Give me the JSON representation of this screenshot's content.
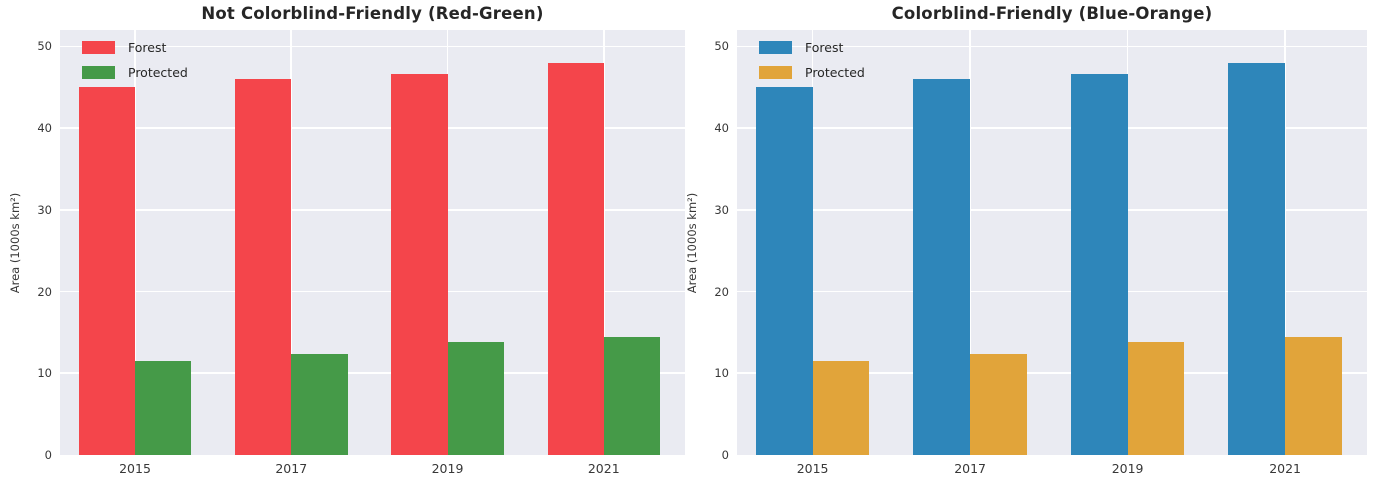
{
  "figure": {
    "background": "#ffffff",
    "axes_background": "#eaebf2",
    "grid_color": "#ffffff",
    "title_color": "#262626",
    "tick_color": "#383838"
  },
  "chart_data": [
    {
      "type": "bar",
      "title": "Not Colorblind-Friendly (Red-Green)",
      "categories": [
        "2015",
        "2017",
        "2019",
        "2021"
      ],
      "series": [
        {
          "name": "Forest",
          "color": "#f4454b",
          "values": [
            45.0,
            46.0,
            46.6,
            48.0
          ]
        },
        {
          "name": "Protected",
          "color": "#459a48",
          "values": [
            11.5,
            12.3,
            13.8,
            14.4
          ]
        }
      ],
      "xlabel": "",
      "ylabel": "Area (1000s km²)",
      "yticks": [
        0,
        10,
        20,
        30,
        40,
        50
      ],
      "ylim": [
        0,
        52
      ],
      "grid": true,
      "legend_position": "upper left"
    },
    {
      "type": "bar",
      "title": "Colorblind-Friendly (Blue-Orange)",
      "categories": [
        "2015",
        "2017",
        "2019",
        "2021"
      ],
      "series": [
        {
          "name": "Forest",
          "color": "#2e86ba",
          "values": [
            45.0,
            46.0,
            46.6,
            48.0
          ]
        },
        {
          "name": "Protected",
          "color": "#e1a43a",
          "values": [
            11.5,
            12.3,
            13.8,
            14.4
          ]
        }
      ],
      "xlabel": "",
      "ylabel": "Area (1000s km²)",
      "yticks": [
        0,
        10,
        20,
        30,
        40,
        50
      ],
      "ylim": [
        0,
        52
      ],
      "grid": true,
      "legend_position": "upper left"
    }
  ]
}
